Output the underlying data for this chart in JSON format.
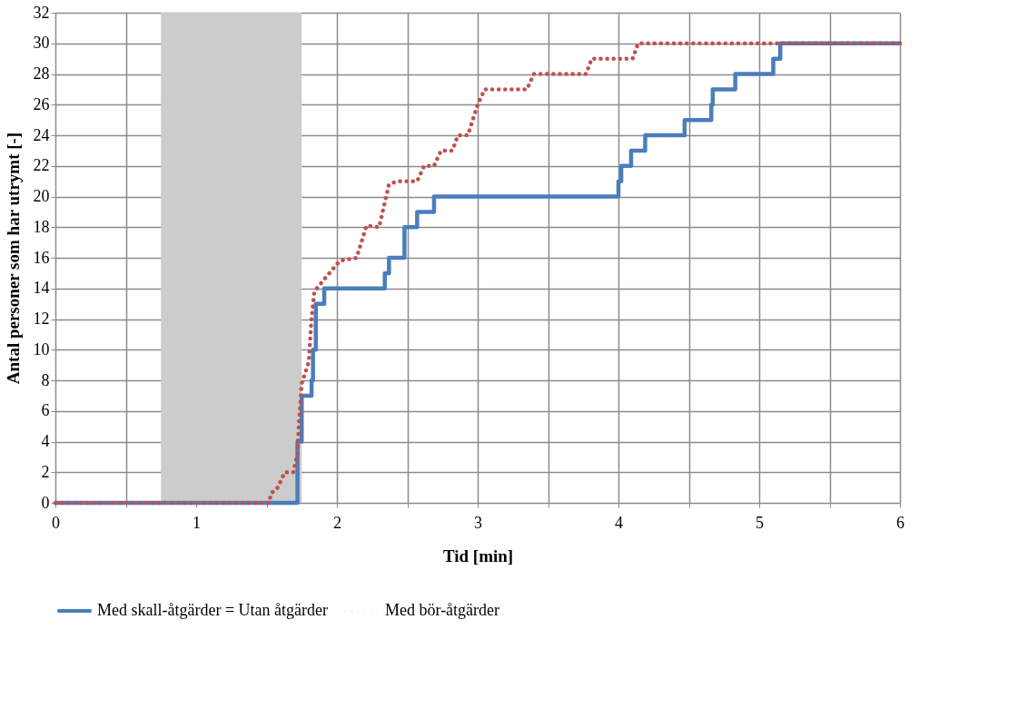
{
  "chart_data": {
    "type": "line",
    "xlabel": "Tid [min]",
    "ylabel": "Antal personer som har utrymt [-]",
    "xlim": [
      0,
      6
    ],
    "ylim": [
      0,
      32
    ],
    "xticks": [
      {
        "value": 0,
        "label": "0"
      },
      {
        "value": 0.5,
        "label": null
      },
      {
        "value": 1,
        "label": "1"
      },
      {
        "value": 1.5,
        "label": null
      },
      {
        "value": 2,
        "label": "2"
      },
      {
        "value": 2.5,
        "label": null
      },
      {
        "value": 3,
        "label": "3"
      },
      {
        "value": 3.5,
        "label": null
      },
      {
        "value": 4,
        "label": "4"
      },
      {
        "value": 4.5,
        "label": null
      },
      {
        "value": 5,
        "label": "5"
      },
      {
        "value": 5.5,
        "label": null
      },
      {
        "value": 6,
        "label": "6"
      }
    ],
    "yticks": [
      0,
      2,
      4,
      6,
      8,
      10,
      12,
      14,
      16,
      18,
      20,
      22,
      24,
      26,
      28,
      30,
      32
    ],
    "grid": true,
    "legend": "bottom",
    "bands": [
      {
        "axis": "x",
        "from": 0.75,
        "to": 1.75,
        "color": "#cccccc"
      }
    ],
    "series": [
      {
        "name": "Med skall-åtgärder = Utan åtgärder",
        "type": "step",
        "color": "#4a7ebb",
        "line_style": "solid",
        "x": [
          0,
          1.72,
          1.75,
          1.82,
          1.83,
          1.85,
          1.91,
          2.34,
          2.37,
          2.48,
          2.57,
          2.69,
          4.0,
          4.02,
          4.09,
          4.19,
          4.47,
          4.66,
          4.67,
          4.83,
          5.1,
          5.15,
          6
        ],
        "values": [
          0,
          4,
          7,
          8,
          10,
          13,
          14,
          15,
          16,
          18,
          19,
          20,
          21,
          22,
          23,
          24,
          25,
          26,
          27,
          28,
          29,
          30,
          30
        ]
      },
      {
        "name": "Med bör-åtgärder",
        "color": "#c0504d",
        "line_style": "dotted",
        "x": [
          0,
          1.52,
          1.53,
          1.58,
          1.63,
          1.69,
          1.72,
          1.73,
          1.75,
          1.8,
          1.82,
          1.84,
          1.91,
          2.02,
          2.14,
          2.21,
          2.3,
          2.37,
          2.43,
          2.57,
          2.62,
          2.69,
          2.74,
          2.82,
          2.86,
          2.93,
          3.0,
          3.05,
          3.35,
          3.4,
          3.77,
          3.81,
          4.1,
          4.14,
          6
        ],
        "values": [
          0,
          0,
          0.6,
          1,
          2,
          2,
          3.2,
          5.2,
          7.8,
          9.2,
          12.1,
          13.8,
          14.6,
          15.8,
          16,
          18.1,
          18,
          20.8,
          21,
          21,
          22,
          22,
          23,
          23,
          24,
          24,
          26,
          27,
          27,
          28,
          28,
          29,
          29,
          30,
          30
        ]
      }
    ]
  }
}
